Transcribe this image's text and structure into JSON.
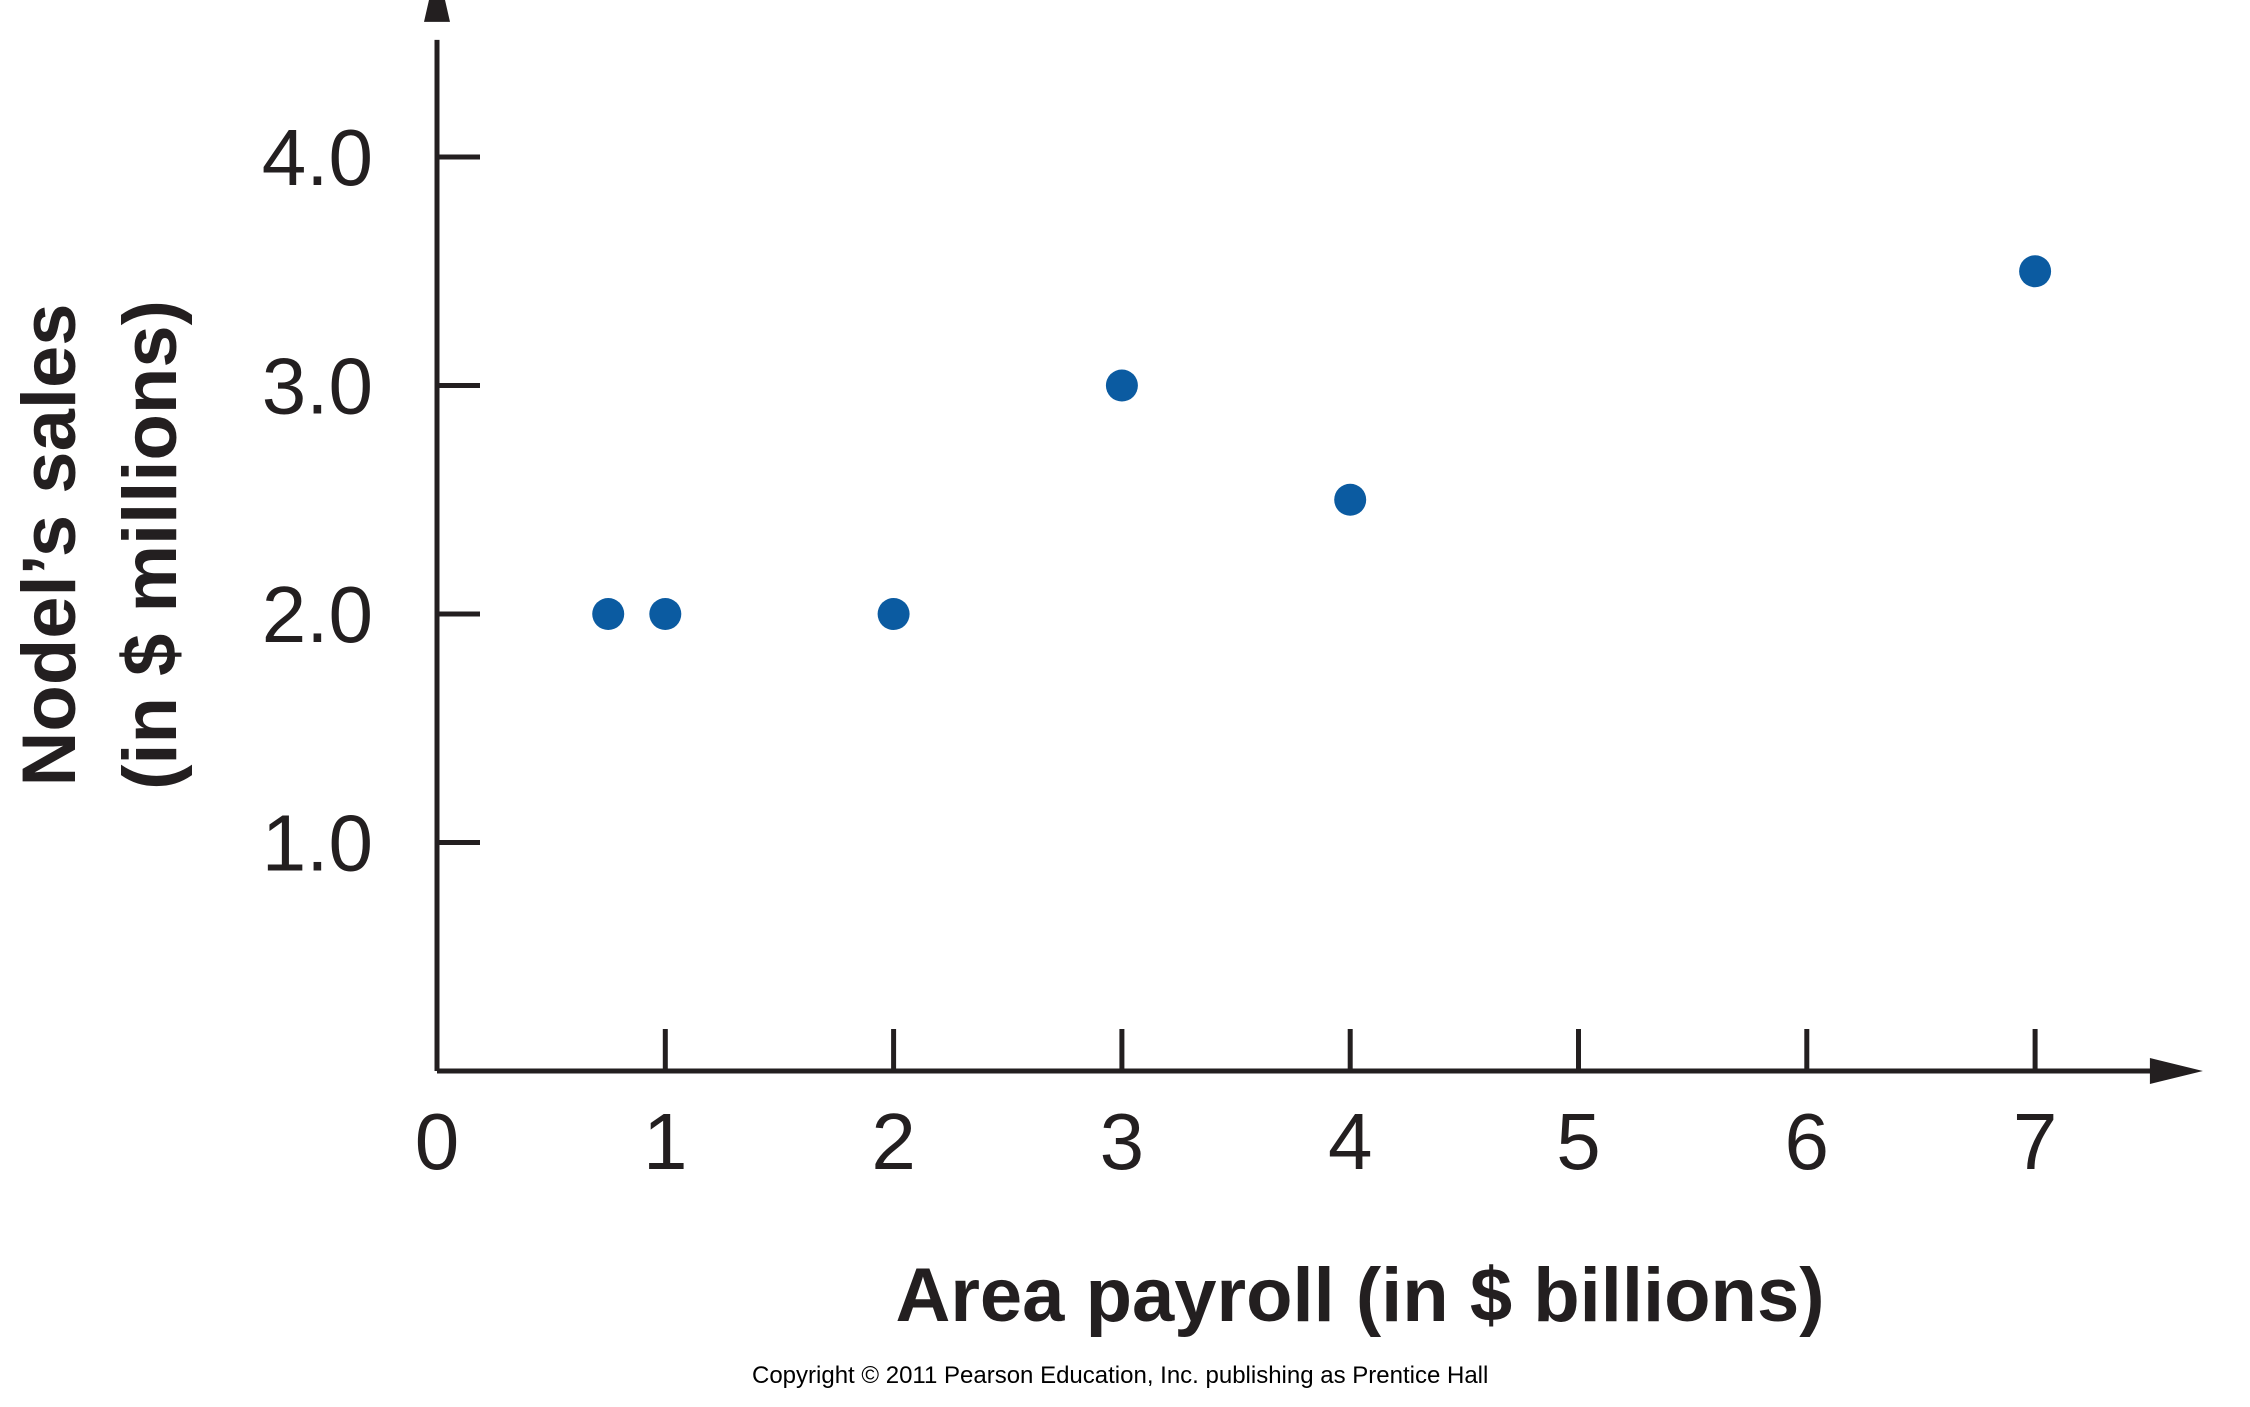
{
  "chart_data": {
    "type": "scatter",
    "xlabel": "Area payroll (in $ billions)",
    "ylabel_line1": "Nodel’s sales",
    "ylabel_line2": "(in $ millions)",
    "x_ticks": [
      0,
      1,
      2,
      3,
      4,
      5,
      6,
      7
    ],
    "x_tick_labels": [
      "0",
      "1",
      "2",
      "3",
      "4",
      "5",
      "6",
      "7"
    ],
    "y_ticks": [
      1.0,
      2.0,
      3.0,
      4.0
    ],
    "y_tick_labels": [
      "1.0",
      "2.0",
      "3.0",
      "4.0"
    ],
    "xlim": [
      0,
      7.7
    ],
    "ylim": [
      0,
      4.6
    ],
    "points": [
      {
        "x": 0.75,
        "y": 2.0
      },
      {
        "x": 1.0,
        "y": 2.0
      },
      {
        "x": 2.0,
        "y": 2.0
      },
      {
        "x": 3.0,
        "y": 3.0
      },
      {
        "x": 4.0,
        "y": 2.5
      },
      {
        "x": 7.0,
        "y": 3.5
      }
    ],
    "point_color": "#0b5ba1",
    "axis_color": "#231f20",
    "grid": false
  },
  "footer": {
    "copyright": "Copyright © 2011 Pearson Education, Inc. publishing as Prentice Hall"
  }
}
